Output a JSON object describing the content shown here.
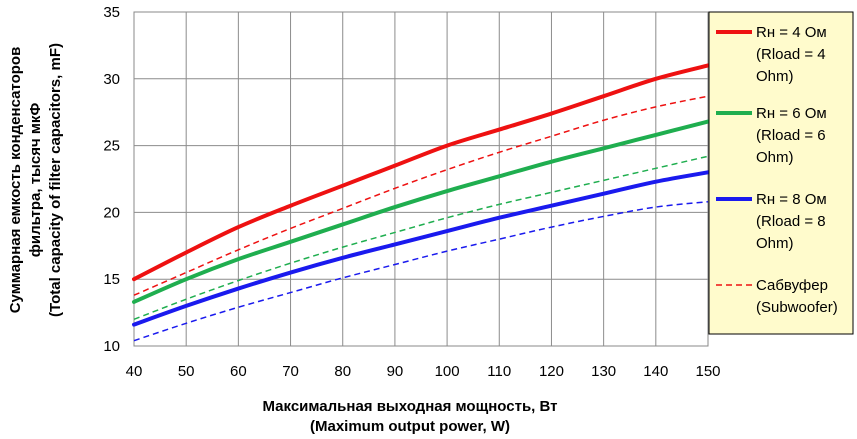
{
  "chart_data": {
    "type": "line",
    "x": [
      40,
      50,
      60,
      70,
      80,
      90,
      100,
      110,
      120,
      130,
      140,
      150
    ],
    "xlim": [
      40,
      150
    ],
    "ylim": [
      10,
      35
    ],
    "xticks": [
      "40",
      "50",
      "60",
      "70",
      "80",
      "90",
      "100",
      "110",
      "120",
      "130",
      "140",
      "150"
    ],
    "yticks": [
      "10",
      "15",
      "20",
      "25",
      "30",
      "35"
    ],
    "grid": true,
    "legend_position": "right",
    "xlabel": [
      "Максимальная выходная мощность, Вт",
      "(Maximum output power, W)"
    ],
    "ylabel": [
      "Суммарная емкость конденсаторов",
      "фильтра, тысяч мкФ",
      "(Total capacity of filter capacitors, mF)"
    ],
    "series": [
      {
        "name_lines": [
          "Rн = 4 Ом",
          "(Rload = 4",
          "Ohm)"
        ],
        "color": "#ee1111",
        "style": "solid",
        "values": [
          15.0,
          17.0,
          18.9,
          20.5,
          22.0,
          23.5,
          25.0,
          26.2,
          27.4,
          28.7,
          30.0,
          31.0
        ]
      },
      {
        "name_lines": [
          "Rн = 6 Ом",
          "(Rload = 6",
          "Ohm)"
        ],
        "color": "#1fae4f",
        "style": "solid",
        "values": [
          13.3,
          15.0,
          16.5,
          17.8,
          19.1,
          20.4,
          21.6,
          22.7,
          23.8,
          24.8,
          25.8,
          26.8
        ]
      },
      {
        "name_lines": [
          "Rн = 8 Ом",
          "(Rload = 8",
          "Ohm)"
        ],
        "color": "#1a1aee",
        "style": "solid",
        "values": [
          11.6,
          13.0,
          14.3,
          15.5,
          16.6,
          17.6,
          18.6,
          19.6,
          20.5,
          21.4,
          22.3,
          23.0
        ]
      },
      {
        "name_lines": [
          "Сабвуфер",
          "(Subwoofer)"
        ],
        "color": "#ee1111",
        "style": "dashed",
        "values": [
          13.8,
          15.5,
          17.2,
          18.8,
          20.3,
          21.8,
          23.2,
          24.5,
          25.7,
          26.9,
          27.9,
          28.7
        ]
      },
      {
        "color": "#1fae4f",
        "style": "dashed",
        "values": [
          12.0,
          13.5,
          14.9,
          16.2,
          17.4,
          18.5,
          19.6,
          20.6,
          21.5,
          22.4,
          23.3,
          24.2
        ]
      },
      {
        "color": "#1a1aee",
        "style": "dashed",
        "values": [
          10.4,
          11.7,
          12.9,
          14.0,
          15.1,
          16.1,
          17.1,
          18.0,
          18.9,
          19.7,
          20.4,
          20.8
        ]
      }
    ]
  }
}
